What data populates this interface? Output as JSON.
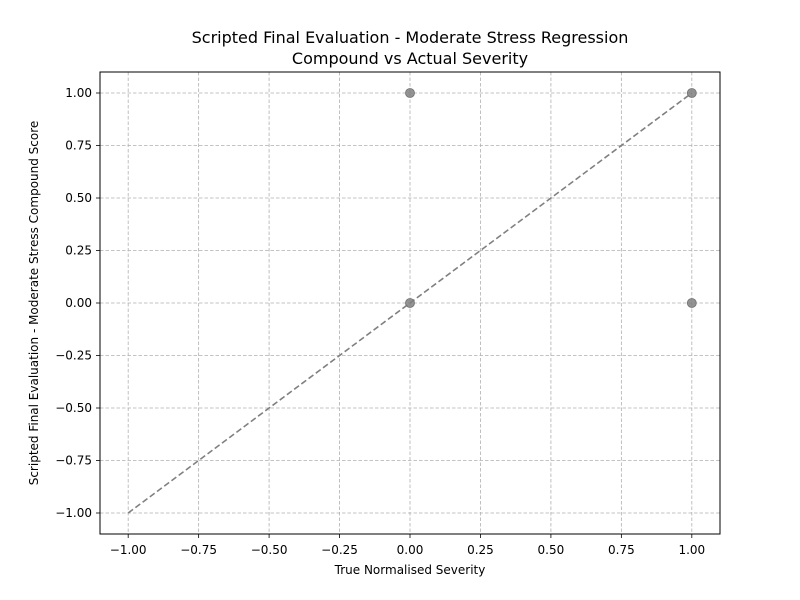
{
  "chart_data": {
    "type": "scatter",
    "title": "Scripted Final Evaluation - Moderate Stress Regression",
    "subtitle": "Compound vs Actual Severity",
    "xlabel": "True Normalised Severity",
    "ylabel": "Scripted Final Evaluation - Moderate Stress Compound Score",
    "xlim": [
      -1.1,
      1.1
    ],
    "ylim": [
      -1.1,
      1.1
    ],
    "x_ticks": [
      -1.0,
      -0.75,
      -0.5,
      -0.25,
      0.0,
      0.25,
      0.5,
      0.75,
      1.0
    ],
    "x_tick_labels": [
      "−1.00",
      "−0.75",
      "−0.50",
      "−0.25",
      "0.00",
      "0.25",
      "0.50",
      "0.75",
      "1.00"
    ],
    "y_ticks": [
      -1.0,
      -0.75,
      -0.5,
      -0.25,
      0.0,
      0.25,
      0.5,
      0.75,
      1.0
    ],
    "y_tick_labels": [
      "−1.00",
      "−0.75",
      "−0.50",
      "−0.25",
      "0.00",
      "0.25",
      "0.50",
      "0.75",
      "1.00"
    ],
    "grid": true,
    "points": [
      {
        "x": 0.0,
        "y": 1.0
      },
      {
        "x": 1.0,
        "y": 1.0
      },
      {
        "x": 0.0,
        "y": 0.0
      },
      {
        "x": 1.0,
        "y": 0.0
      }
    ],
    "reference_line": {
      "x": [
        -1.0,
        1.0
      ],
      "y": [
        -1.0,
        1.0
      ],
      "style": "dashed"
    },
    "colors": {
      "points": "#808080",
      "reference": "#808080",
      "grid": "#b0b0b0",
      "axes": "#000000"
    }
  }
}
